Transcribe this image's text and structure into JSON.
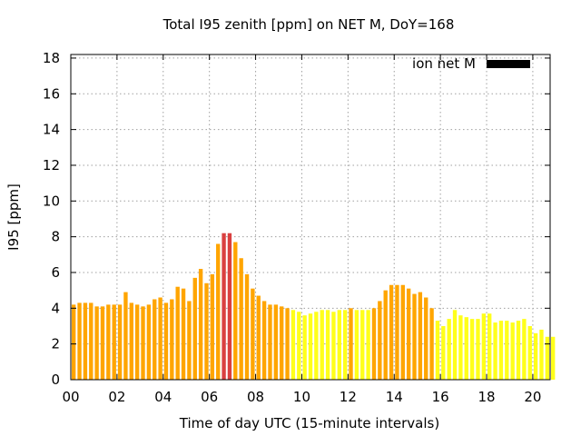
{
  "chart_data": {
    "type": "bar",
    "title": "Total I95 zenith [ppm] on NET M, DoY=168",
    "xlabel": "Time of day UTC (15-minute intervals)",
    "ylabel": "I95 [ppm]",
    "xlim": [
      0,
      20.75
    ],
    "ylim": [
      0,
      18.2
    ],
    "x_ticks": [
      "00",
      "02",
      "04",
      "06",
      "08",
      "10",
      "12",
      "14",
      "16",
      "18",
      "20"
    ],
    "y_ticks": [
      "0",
      "2",
      "4",
      "6",
      "8",
      "10",
      "12",
      "14",
      "16",
      "18"
    ],
    "grid": true,
    "legend": {
      "position": "top-right",
      "entries": [
        {
          "name": "ion net M",
          "color": "#000000"
        }
      ]
    },
    "interval_hours": 0.25,
    "values": [
      4.2,
      4.3,
      4.3,
      4.3,
      4.1,
      4.1,
      4.2,
      4.2,
      4.2,
      4.9,
      4.3,
      4.2,
      4.1,
      4.2,
      4.5,
      4.6,
      4.3,
      4.5,
      5.2,
      5.1,
      4.4,
      5.7,
      6.2,
      5.4,
      5.9,
      7.6,
      8.2,
      8.2,
      7.7,
      6.8,
      5.9,
      5.1,
      4.7,
      4.4,
      4.2,
      4.2,
      4.1,
      4.0,
      3.9,
      3.8,
      3.6,
      3.7,
      3.8,
      3.9,
      3.9,
      3.8,
      3.9,
      3.9,
      4.0,
      3.9,
      3.9,
      3.9,
      4.0,
      4.4,
      5.0,
      5.3,
      5.3,
      5.3,
      5.1,
      4.8,
      4.9,
      4.6,
      4.0,
      3.3,
      3.0,
      3.4,
      3.9,
      3.6,
      3.5,
      3.4,
      3.4,
      3.7,
      3.7,
      3.2,
      3.3,
      3.3,
      3.2,
      3.3,
      3.4,
      3.0,
      2.6,
      2.8,
      2.4,
      2.4
    ],
    "color_scale": [
      {
        "max": 4.0,
        "color": "#ffff1a"
      },
      {
        "max": 8.0,
        "color": "#ffa500"
      },
      {
        "max": 99,
        "color": "#d94040"
      }
    ]
  }
}
